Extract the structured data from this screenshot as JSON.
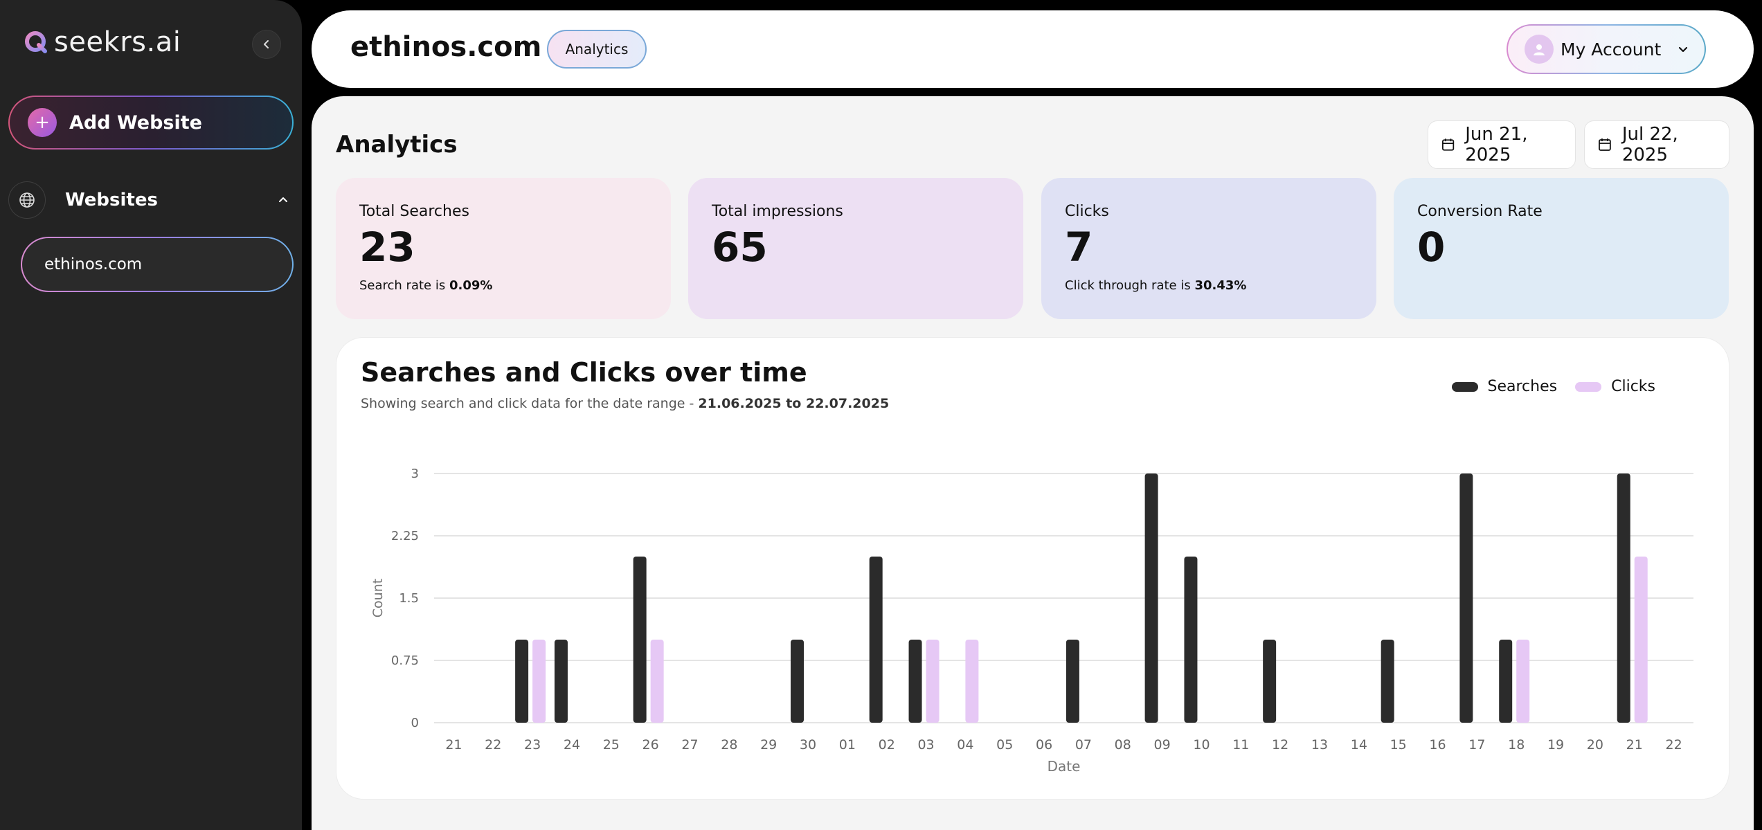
{
  "brand": {
    "name": "seekrs.ai"
  },
  "sidebar": {
    "add_website_label": "Add Website",
    "websites_label": "Websites",
    "sites": [
      "ethinos.com"
    ]
  },
  "header": {
    "site_title": "ethinos.com",
    "chip_label": "Analytics",
    "account_label": "My Account"
  },
  "main": {
    "title": "Analytics",
    "date_from": "Jun 21, 2025",
    "date_to": "Jul 22, 2025",
    "cards": [
      {
        "label": "Total Searches",
        "value": "23",
        "sub_prefix": "Search rate is ",
        "sub_value": "0.09%"
      },
      {
        "label": "Total impressions",
        "value": "65",
        "sub_prefix": "",
        "sub_value": ""
      },
      {
        "label": "Clicks",
        "value": "7",
        "sub_prefix": "Click through rate is ",
        "sub_value": "30.43%"
      },
      {
        "label": "Conversion Rate",
        "value": "0",
        "sub_prefix": "",
        "sub_value": ""
      }
    ],
    "chart": {
      "title": "Searches and Clicks over time",
      "subtitle_prefix": "Showing search and click data for the date range - ",
      "subtitle_range": "21.06.2025 to 22.07.2025"
    }
  },
  "colors": {
    "searches": "#2b2b2b",
    "clicks": "#e6c8f5",
    "grid": "#dcdcdc"
  },
  "chart_data": {
    "type": "bar",
    "xlabel": "Date",
    "ylabel": "Count",
    "ylim": [
      0,
      3
    ],
    "yticks": [
      "0",
      "0.75",
      "1.5",
      "2.25",
      "3"
    ],
    "legend_position": "top-right",
    "grid": true,
    "categories": [
      "21",
      "22",
      "23",
      "24",
      "25",
      "26",
      "27",
      "28",
      "29",
      "30",
      "01",
      "02",
      "03",
      "04",
      "05",
      "06",
      "07",
      "08",
      "09",
      "10",
      "11",
      "12",
      "13",
      "14",
      "15",
      "16",
      "17",
      "18",
      "19",
      "20",
      "21",
      "22"
    ],
    "series": [
      {
        "name": "Searches",
        "values": [
          0,
          0,
          1,
          1,
          0,
          2,
          0,
          0,
          0,
          1,
          0,
          2,
          1,
          0,
          0,
          0,
          1,
          0,
          3,
          2,
          0,
          1,
          0,
          0,
          1,
          0,
          3,
          1,
          0,
          0,
          3,
          0
        ]
      },
      {
        "name": "Clicks",
        "values": [
          0,
          0,
          1,
          0,
          0,
          1,
          0,
          0,
          0,
          0,
          0,
          0,
          1,
          1,
          0,
          0,
          0,
          0,
          0,
          0,
          0,
          0,
          0,
          0,
          0,
          0,
          0,
          1,
          0,
          0,
          2,
          0
        ]
      }
    ]
  }
}
